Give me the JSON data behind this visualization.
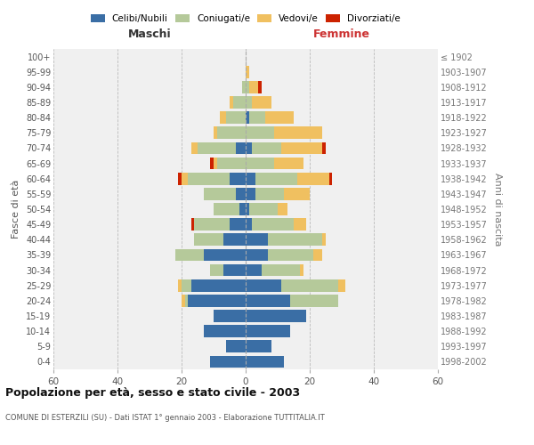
{
  "age_groups": [
    "0-4",
    "5-9",
    "10-14",
    "15-19",
    "20-24",
    "25-29",
    "30-34",
    "35-39",
    "40-44",
    "45-49",
    "50-54",
    "55-59",
    "60-64",
    "65-69",
    "70-74",
    "75-79",
    "80-84",
    "85-89",
    "90-94",
    "95-99",
    "100+"
  ],
  "anni_nascita": [
    "1998-2002",
    "1993-1997",
    "1988-1992",
    "1983-1987",
    "1978-1982",
    "1973-1977",
    "1968-1972",
    "1963-1967",
    "1958-1962",
    "1953-1957",
    "1948-1952",
    "1943-1947",
    "1938-1942",
    "1933-1937",
    "1928-1932",
    "1923-1927",
    "1918-1922",
    "1913-1917",
    "1908-1912",
    "1903-1907",
    "≤ 1902"
  ],
  "maschi": {
    "celibi": [
      11,
      6,
      13,
      10,
      18,
      17,
      7,
      13,
      7,
      5,
      2,
      3,
      5,
      0,
      3,
      0,
      0,
      0,
      0,
      0,
      0
    ],
    "coniugati": [
      0,
      0,
      0,
      0,
      1,
      3,
      4,
      9,
      9,
      11,
      8,
      10,
      13,
      9,
      12,
      9,
      6,
      4,
      1,
      0,
      0
    ],
    "vedovi": [
      0,
      0,
      0,
      0,
      1,
      1,
      0,
      0,
      0,
      0,
      0,
      0,
      2,
      1,
      2,
      1,
      2,
      1,
      0,
      0,
      0
    ],
    "divorziati": [
      0,
      0,
      0,
      0,
      0,
      0,
      0,
      0,
      0,
      1,
      0,
      0,
      1,
      1,
      0,
      0,
      0,
      0,
      0,
      0,
      0
    ]
  },
  "femmine": {
    "nubili": [
      12,
      8,
      14,
      19,
      14,
      11,
      5,
      7,
      7,
      2,
      1,
      3,
      3,
      0,
      2,
      0,
      1,
      0,
      0,
      0,
      0
    ],
    "coniugate": [
      0,
      0,
      0,
      0,
      15,
      18,
      12,
      14,
      17,
      13,
      9,
      9,
      13,
      9,
      9,
      9,
      5,
      2,
      1,
      0,
      0
    ],
    "vedove": [
      0,
      0,
      0,
      0,
      0,
      2,
      1,
      3,
      1,
      4,
      3,
      8,
      10,
      9,
      13,
      15,
      9,
      6,
      3,
      1,
      0
    ],
    "divorziate": [
      0,
      0,
      0,
      0,
      0,
      0,
      0,
      0,
      0,
      0,
      0,
      0,
      1,
      0,
      1,
      0,
      0,
      0,
      1,
      0,
      0
    ]
  },
  "colors": {
    "celibe": "#3a6ea5",
    "coniugato": "#b5c99a",
    "vedovo": "#f0c060",
    "divorziato": "#cc2200"
  },
  "xlim": 60,
  "title": "Popolazione per età, sesso e stato civile - 2003",
  "subtitle": "COMUNE DI ESTERZILI (SU) - Dati ISTAT 1° gennaio 2003 - Elaborazione TUTTITALIA.IT",
  "ylabel_left": "Fasce di età",
  "ylabel_right": "Anni di nascita",
  "xlabel_left": "Maschi",
  "xlabel_right": "Femmine",
  "bg_color": "#f0f0f0",
  "grid_color": "#cccccc",
  "bar_height": 0.8
}
